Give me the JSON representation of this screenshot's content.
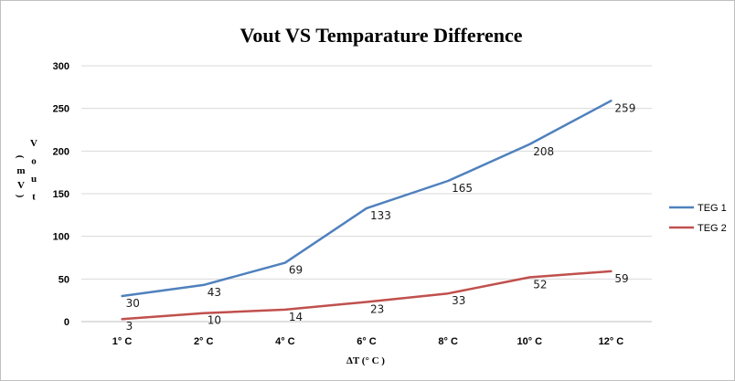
{
  "chart_data": {
    "type": "line",
    "title": "Vout VS Temparature Difference",
    "xlabel": "ΔT (° C )",
    "ylabel": "Vout (mV)",
    "categories": [
      "1° C",
      "2° C",
      "4° C",
      "6° C",
      "8° C",
      "10° C",
      "12° C"
    ],
    "ylim": [
      0,
      300
    ],
    "yticks": [
      0,
      50,
      100,
      150,
      200,
      250,
      300
    ],
    "grid": true,
    "legend_position": "right",
    "series": [
      {
        "name": "TEG 1",
        "color": "#4f81bd",
        "values": [
          30,
          43,
          69,
          133,
          165,
          208,
          259
        ]
      },
      {
        "name": "TEG 2",
        "color": "#c0504d",
        "values": [
          3,
          10,
          14,
          23,
          33,
          52,
          59
        ]
      }
    ]
  }
}
